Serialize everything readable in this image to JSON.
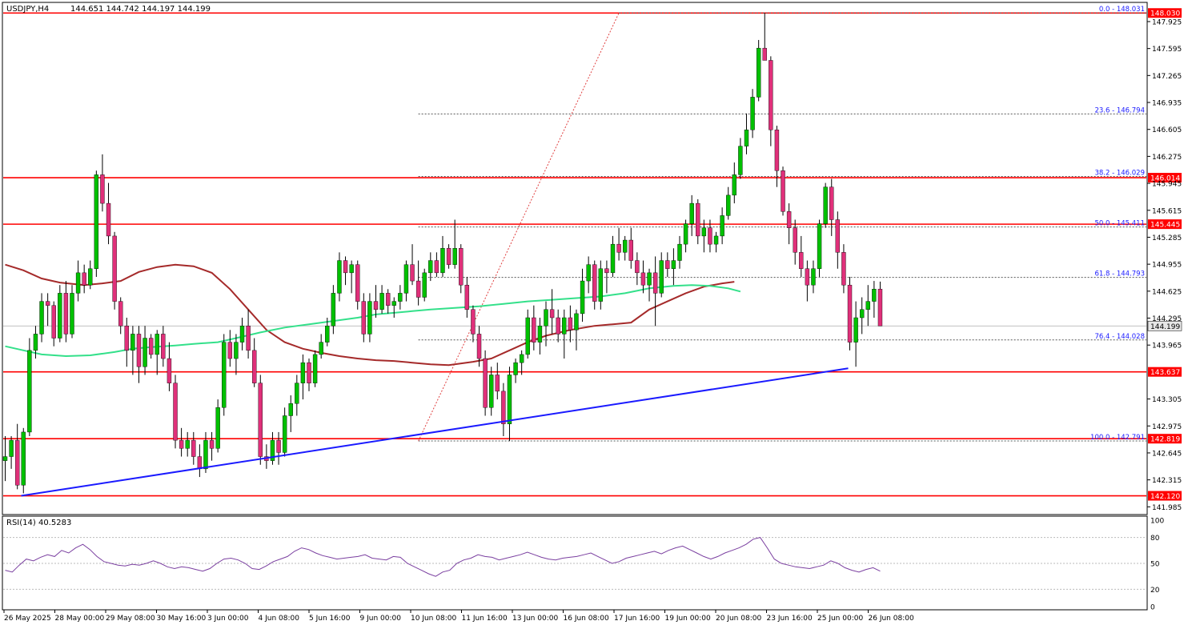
{
  "header": {
    "symbol": "USDJPY,H4",
    "ohlc": "144.651 144.742 144.197 144.199"
  },
  "rsi_header": "RSI(14) 40.5283",
  "colors": {
    "bull": "#00c000",
    "bear": "#e0307a",
    "hline": "#ff0000",
    "trend": "#1a1aff",
    "ma_slow": "#a52a2a",
    "ma_fast": "#33e08a",
    "rsi": "#7a3fa0",
    "fib": "#1a1aff"
  },
  "chart_data": {
    "type": "candlestick",
    "price_axis": {
      "range": [
        141.9,
        148.15
      ],
      "ticks": [
        "147.925",
        "147.595",
        "147.265",
        "146.935",
        "146.605",
        "146.275",
        "145.945",
        "145.615",
        "145.285",
        "144.955",
        "144.625",
        "144.295",
        "143.965",
        "143.305",
        "142.975",
        "142.645",
        "142.315",
        "141.985"
      ]
    },
    "time_axis": {
      "labels": [
        "26 May 2025",
        "28 May 00:00",
        "29 May 08:00",
        "30 May 16:00",
        "3 Jun 00:00",
        "4 Jun 08:00",
        "5 Jun 16:00",
        "9 Jun 00:00",
        "10 Jun 08:00",
        "11 Jun 16:00",
        "13 Jun 00:00",
        "16 Jun 08:00",
        "17 Jun 16:00",
        "19 Jun 00:00",
        "20 Jun 08:00",
        "23 Jun 16:00",
        "25 Jun 00:00",
        "26 Jun 08:00"
      ]
    },
    "current_price": "144.199",
    "horizontal_levels": [
      {
        "price": 148.03,
        "label": "148.030"
      },
      {
        "price": 146.014,
        "label": "146.014"
      },
      {
        "price": 145.445,
        "label": "145.445"
      },
      {
        "price": 143.637,
        "label": "143.637"
      },
      {
        "price": 142.819,
        "label": "142.819"
      },
      {
        "price": 142.12,
        "label": "142.120"
      }
    ],
    "fibonacci": [
      {
        "price": 148.031,
        "label": "0.0 - 148.031"
      },
      {
        "price": 146.794,
        "label": "23.6 - 146.794"
      },
      {
        "price": 146.029,
        "label": "38.2 - 146.029"
      },
      {
        "price": 145.411,
        "label": "50.0 - 145.411"
      },
      {
        "price": 144.793,
        "label": "61.8 - 144.793"
      },
      {
        "price": 144.028,
        "label": "76.4 - 144.028"
      },
      {
        "price": 142.791,
        "label": "100.0 - 142.791"
      }
    ],
    "trendline": {
      "from": [
        0,
        142.12
      ],
      "to": [
        139,
        143.68
      ]
    },
    "fib_anchor": {
      "from": [
        68,
        142.79
      ],
      "to": [
        101,
        148.03
      ]
    },
    "candles": [
      [
        142.55,
        142.85,
        142.3,
        142.6
      ],
      [
        142.6,
        142.85,
        142.45,
        142.8
      ],
      [
        142.8,
        143.0,
        142.2,
        142.25
      ],
      [
        142.25,
        142.95,
        142.15,
        142.9
      ],
      [
        142.9,
        144.05,
        142.85,
        143.9
      ],
      [
        143.9,
        144.2,
        143.8,
        144.1
      ],
      [
        144.1,
        144.6,
        144.0,
        144.5
      ],
      [
        144.5,
        144.6,
        144.2,
        144.45
      ],
      [
        144.45,
        144.5,
        143.95,
        144.05
      ],
      [
        144.05,
        144.7,
        144.0,
        144.6
      ],
      [
        144.6,
        144.75,
        144.0,
        144.1
      ],
      [
        144.1,
        144.7,
        144.05,
        144.6
      ],
      [
        144.6,
        145.0,
        144.5,
        144.85
      ],
      [
        144.85,
        144.95,
        144.6,
        144.7
      ],
      [
        144.7,
        145.0,
        144.65,
        144.9
      ],
      [
        144.9,
        146.1,
        144.8,
        146.05
      ],
      [
        146.05,
        146.3,
        145.6,
        145.7
      ],
      [
        145.7,
        145.95,
        145.2,
        145.3
      ],
      [
        145.3,
        145.35,
        144.4,
        144.5
      ],
      [
        144.5,
        144.55,
        144.1,
        144.2
      ],
      [
        144.2,
        144.3,
        143.7,
        143.9
      ],
      [
        143.9,
        144.2,
        143.6,
        144.1
      ],
      [
        144.1,
        144.2,
        143.5,
        143.7
      ],
      [
        143.7,
        144.2,
        143.6,
        144.05
      ],
      [
        144.05,
        144.1,
        143.8,
        143.85
      ],
      [
        143.85,
        144.15,
        143.6,
        144.1
      ],
      [
        144.1,
        144.2,
        143.7,
        143.8
      ],
      [
        143.8,
        144.0,
        143.4,
        143.5
      ],
      [
        143.5,
        143.6,
        142.7,
        142.8
      ],
      [
        142.8,
        142.95,
        142.6,
        142.7
      ],
      [
        142.7,
        142.9,
        142.6,
        142.8
      ],
      [
        142.8,
        142.9,
        142.5,
        142.6
      ],
      [
        142.6,
        142.75,
        142.35,
        142.45
      ],
      [
        142.45,
        142.9,
        142.4,
        142.8
      ],
      [
        142.8,
        142.9,
        142.55,
        142.7
      ],
      [
        142.7,
        143.3,
        142.65,
        143.2
      ],
      [
        143.2,
        144.1,
        143.1,
        144.0
      ],
      [
        144.0,
        144.15,
        143.7,
        143.8
      ],
      [
        143.8,
        144.1,
        143.6,
        144.0
      ],
      [
        144.0,
        144.3,
        143.9,
        144.2
      ],
      [
        144.2,
        144.4,
        143.8,
        143.9
      ],
      [
        143.9,
        144.05,
        143.45,
        143.5
      ],
      [
        143.5,
        143.6,
        142.5,
        142.6
      ],
      [
        142.6,
        142.75,
        142.45,
        142.55
      ],
      [
        142.55,
        142.9,
        142.5,
        142.8
      ],
      [
        142.8,
        142.9,
        142.5,
        142.65
      ],
      [
        142.65,
        143.2,
        142.6,
        143.1
      ],
      [
        143.1,
        143.35,
        142.9,
        143.25
      ],
      [
        143.25,
        143.6,
        143.1,
        143.5
      ],
      [
        143.5,
        143.85,
        143.3,
        143.75
      ],
      [
        143.75,
        143.8,
        143.4,
        143.5
      ],
      [
        143.5,
        143.9,
        143.45,
        143.85
      ],
      [
        143.85,
        144.1,
        143.8,
        144.0
      ],
      [
        144.0,
        144.3,
        143.95,
        144.2
      ],
      [
        144.2,
        144.7,
        144.1,
        144.6
      ],
      [
        144.6,
        145.1,
        144.5,
        145.0
      ],
      [
        145.0,
        145.05,
        144.7,
        144.85
      ],
      [
        144.85,
        145.0,
        144.6,
        144.95
      ],
      [
        144.95,
        145.0,
        144.4,
        144.5
      ],
      [
        144.5,
        144.6,
        144.0,
        144.1
      ],
      [
        144.1,
        144.6,
        144.0,
        144.5
      ],
      [
        144.5,
        144.7,
        144.3,
        144.4
      ],
      [
        144.4,
        144.7,
        144.35,
        144.6
      ],
      [
        144.6,
        144.65,
        144.35,
        144.45
      ],
      [
        144.45,
        144.55,
        144.3,
        144.5
      ],
      [
        144.5,
        144.7,
        144.4,
        144.6
      ],
      [
        144.6,
        145.0,
        144.5,
        144.95
      ],
      [
        144.95,
        145.2,
        144.7,
        144.75
      ],
      [
        144.75,
        145.0,
        144.45,
        144.55
      ],
      [
        144.55,
        144.9,
        144.5,
        144.85
      ],
      [
        144.85,
        145.1,
        144.75,
        145.0
      ],
      [
        145.0,
        145.1,
        144.8,
        144.85
      ],
      [
        144.85,
        145.3,
        144.8,
        145.15
      ],
      [
        145.15,
        145.2,
        144.9,
        144.95
      ],
      [
        144.95,
        145.5,
        144.9,
        145.15
      ],
      [
        145.15,
        145.2,
        144.6,
        144.7
      ],
      [
        144.7,
        144.8,
        144.3,
        144.4
      ],
      [
        144.4,
        144.45,
        144.0,
        144.1
      ],
      [
        144.1,
        144.2,
        143.7,
        143.8
      ],
      [
        143.8,
        143.9,
        143.1,
        143.2
      ],
      [
        143.2,
        143.7,
        143.1,
        143.6
      ],
      [
        143.6,
        143.75,
        143.3,
        143.4
      ],
      [
        143.4,
        143.5,
        142.85,
        143.0
      ],
      [
        143.0,
        143.7,
        142.79,
        143.6
      ],
      [
        143.6,
        143.8,
        143.5,
        143.75
      ],
      [
        143.75,
        143.9,
        143.6,
        143.85
      ],
      [
        143.85,
        144.4,
        143.8,
        144.3
      ],
      [
        144.3,
        144.45,
        143.9,
        144.0
      ],
      [
        144.0,
        144.3,
        143.85,
        144.2
      ],
      [
        144.2,
        144.5,
        143.95,
        144.4
      ],
      [
        144.4,
        144.65,
        144.1,
        144.3
      ],
      [
        144.3,
        144.4,
        144.0,
        144.1
      ],
      [
        144.1,
        144.4,
        143.8,
        144.3
      ],
      [
        144.3,
        144.45,
        144.0,
        144.15
      ],
      [
        144.15,
        144.4,
        143.9,
        144.35
      ],
      [
        144.35,
        144.9,
        144.25,
        144.75
      ],
      [
        144.75,
        145.05,
        144.6,
        144.95
      ],
      [
        144.95,
        145.0,
        144.4,
        144.5
      ],
      [
        144.5,
        145.0,
        144.4,
        144.9
      ],
      [
        144.9,
        145.0,
        144.6,
        144.85
      ],
      [
        144.85,
        145.3,
        144.8,
        145.2
      ],
      [
        145.2,
        145.4,
        145.0,
        145.1
      ],
      [
        145.1,
        145.3,
        145.0,
        145.25
      ],
      [
        145.25,
        145.4,
        144.9,
        145.0
      ],
      [
        145.0,
        145.1,
        144.7,
        144.85
      ],
      [
        144.85,
        145.0,
        144.6,
        144.7
      ],
      [
        144.7,
        144.9,
        144.5,
        144.85
      ],
      [
        144.85,
        145.05,
        144.2,
        144.6
      ],
      [
        144.6,
        145.1,
        144.55,
        145.0
      ],
      [
        145.0,
        145.1,
        144.8,
        144.9
      ],
      [
        144.9,
        145.15,
        144.7,
        145.0
      ],
      [
        145.0,
        145.3,
        144.9,
        145.2
      ],
      [
        145.2,
        145.5,
        145.1,
        145.45
      ],
      [
        145.45,
        145.8,
        145.3,
        145.7
      ],
      [
        145.7,
        145.75,
        145.2,
        145.3
      ],
      [
        145.3,
        145.5,
        145.1,
        145.4
      ],
      [
        145.4,
        145.5,
        145.1,
        145.2
      ],
      [
        145.2,
        145.35,
        145.1,
        145.3
      ],
      [
        145.3,
        145.65,
        145.2,
        145.55
      ],
      [
        145.55,
        145.9,
        145.5,
        145.8
      ],
      [
        145.8,
        146.2,
        145.7,
        146.05
      ],
      [
        146.05,
        146.5,
        146.0,
        146.4
      ],
      [
        146.4,
        146.8,
        146.3,
        146.6
      ],
      [
        146.6,
        147.1,
        146.5,
        147.0
      ],
      [
        147.0,
        147.7,
        146.95,
        147.6
      ],
      [
        147.6,
        148.03,
        147.5,
        147.45
      ],
      [
        147.45,
        147.5,
        146.4,
        146.6
      ],
      [
        146.6,
        146.65,
        145.9,
        146.1
      ],
      [
        146.1,
        146.15,
        145.55,
        145.6
      ],
      [
        145.6,
        145.7,
        145.2,
        145.4
      ],
      [
        145.4,
        145.5,
        144.95,
        145.1
      ],
      [
        145.1,
        145.3,
        144.8,
        144.9
      ],
      [
        144.9,
        145.0,
        144.5,
        144.7
      ],
      [
        144.7,
        145.0,
        144.6,
        144.9
      ],
      [
        144.9,
        145.5,
        144.8,
        145.45
      ],
      [
        145.45,
        145.95,
        145.4,
        145.9
      ],
      [
        145.9,
        146.0,
        145.3,
        145.5
      ],
      [
        145.5,
        145.6,
        144.9,
        145.1
      ],
      [
        145.1,
        145.2,
        144.6,
        144.7
      ],
      [
        144.7,
        144.8,
        143.9,
        144.0
      ],
      [
        144.0,
        144.5,
        143.7,
        144.3
      ],
      [
        144.3,
        144.55,
        144.1,
        144.4
      ],
      [
        144.4,
        144.7,
        144.2,
        144.5
      ],
      [
        144.5,
        144.75,
        144.3,
        144.65
      ],
      [
        144.651,
        144.742,
        144.197,
        144.199
      ]
    ],
    "ma_slow": [
      [
        0,
        144.95
      ],
      [
        3,
        144.88
      ],
      [
        6,
        144.78
      ],
      [
        9,
        144.73
      ],
      [
        13,
        144.7
      ],
      [
        16,
        144.72
      ],
      [
        19,
        144.75
      ],
      [
        22,
        144.86
      ],
      [
        25,
        144.92
      ],
      [
        28,
        144.95
      ],
      [
        31,
        144.93
      ],
      [
        34,
        144.85
      ],
      [
        37,
        144.65
      ],
      [
        40,
        144.4
      ],
      [
        43,
        144.15
      ],
      [
        46,
        144.0
      ],
      [
        49,
        143.92
      ],
      [
        52,
        143.87
      ],
      [
        55,
        143.83
      ],
      [
        58,
        143.8
      ],
      [
        61,
        143.78
      ],
      [
        64,
        143.77
      ],
      [
        67,
        143.75
      ],
      [
        70,
        143.73
      ],
      [
        73,
        143.72
      ],
      [
        77,
        143.76
      ],
      [
        80,
        143.8
      ],
      [
        83,
        143.9
      ],
      [
        86,
        144.0
      ],
      [
        89,
        144.08
      ],
      [
        93,
        144.15
      ],
      [
        97,
        144.2
      ],
      [
        100,
        144.22
      ],
      [
        103,
        144.24
      ],
      [
        106,
        144.4
      ],
      [
        109,
        144.5
      ],
      [
        112,
        144.6
      ],
      [
        115,
        144.68
      ],
      [
        118,
        144.72
      ],
      [
        120,
        144.74
      ]
    ],
    "ma_fast": [
      [
        0,
        143.95
      ],
      [
        3,
        143.9
      ],
      [
        6,
        143.85
      ],
      [
        10,
        143.83
      ],
      [
        14,
        143.84
      ],
      [
        18,
        143.88
      ],
      [
        21,
        143.92
      ],
      [
        24,
        143.94
      ],
      [
        28,
        143.96
      ],
      [
        31,
        143.98
      ],
      [
        35,
        144.0
      ],
      [
        38,
        144.05
      ],
      [
        42,
        144.12
      ],
      [
        46,
        144.18
      ],
      [
        50,
        144.22
      ],
      [
        54,
        144.26
      ],
      [
        58,
        144.3
      ],
      [
        61,
        144.34
      ],
      [
        64,
        144.36
      ],
      [
        67,
        144.38
      ],
      [
        70,
        144.4
      ],
      [
        74,
        144.42
      ],
      [
        78,
        144.44
      ],
      [
        82,
        144.47
      ],
      [
        86,
        144.5
      ],
      [
        90,
        144.52
      ],
      [
        94,
        144.54
      ],
      [
        98,
        144.56
      ],
      [
        102,
        144.6
      ],
      [
        106,
        144.66
      ],
      [
        110,
        144.69
      ],
      [
        113,
        144.7
      ],
      [
        116,
        144.69
      ],
      [
        119,
        144.66
      ],
      [
        121,
        144.62
      ]
    ],
    "rsi": {
      "range": [
        0,
        100
      ],
      "ticks": [
        "100",
        "80",
        "50",
        "20",
        "0"
      ],
      "values": [
        42,
        40,
        48,
        55,
        53,
        57,
        60,
        58,
        65,
        62,
        68,
        72,
        66,
        58,
        52,
        50,
        48,
        47,
        49,
        48,
        50,
        53,
        50,
        46,
        44,
        46,
        45,
        43,
        41,
        44,
        50,
        55,
        56,
        54,
        50,
        44,
        43,
        47,
        52,
        55,
        58,
        64,
        68,
        66,
        62,
        59,
        57,
        55,
        56,
        57,
        58,
        60,
        56,
        55,
        54,
        58,
        57,
        50,
        46,
        42,
        38,
        35,
        40,
        42,
        50,
        54,
        56,
        60,
        58,
        57,
        54,
        56,
        58,
        60,
        63,
        60,
        57,
        55,
        54,
        56,
        57,
        58,
        60,
        62,
        58,
        54,
        50,
        52,
        56,
        58,
        60,
        62,
        64,
        61,
        65,
        68,
        70,
        66,
        62,
        58,
        55,
        58,
        62,
        65,
        68,
        72,
        78,
        80,
        68,
        55,
        50,
        48,
        46,
        45,
        44,
        46,
        48,
        53,
        50,
        45,
        42,
        40,
        43,
        45,
        41
      ]
    }
  }
}
